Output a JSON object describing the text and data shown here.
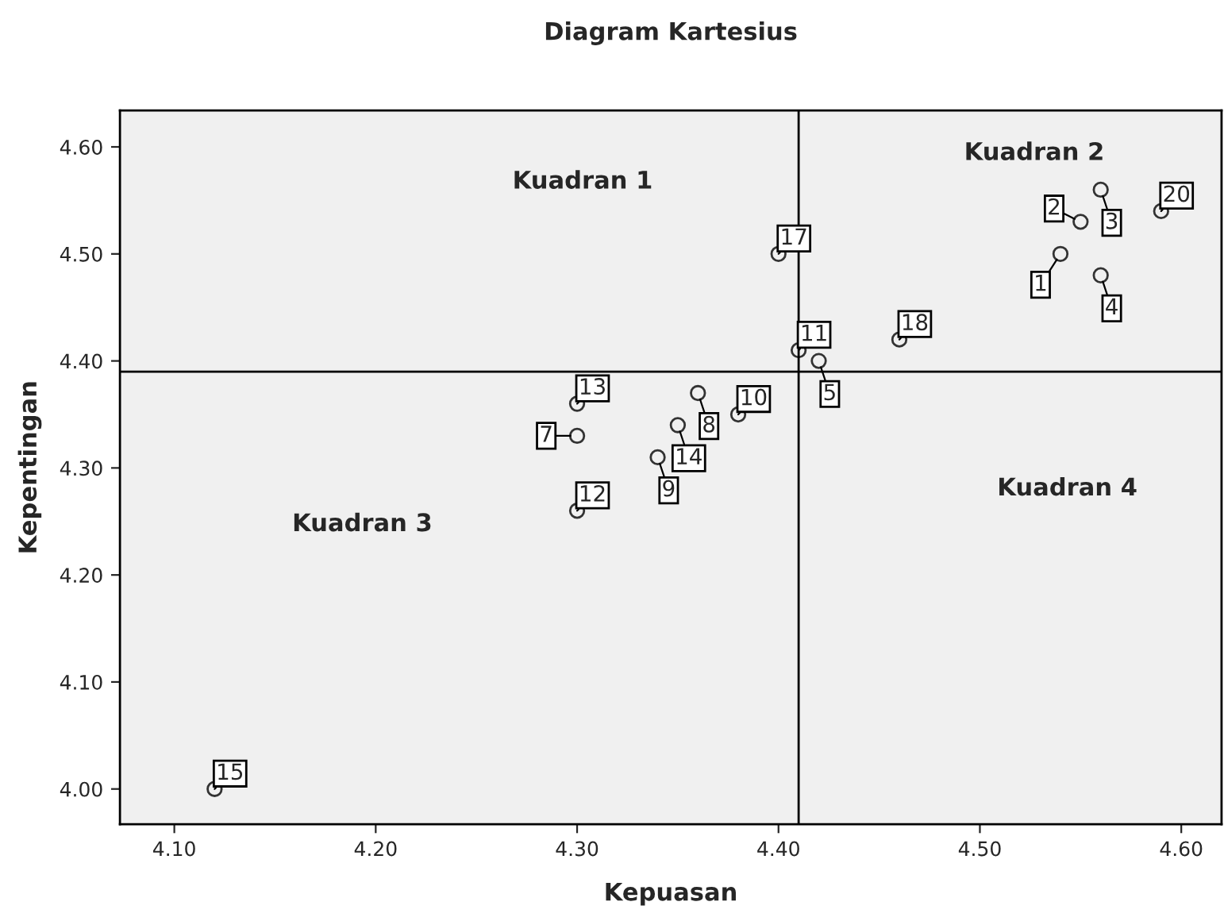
{
  "chart_data": {
    "type": "scatter",
    "title": "Diagram Kartesius",
    "xlabel": "Kepuasan",
    "ylabel": "Kepentingan",
    "x": [
      4.54,
      4.55,
      4.56,
      4.56,
      4.42,
      4.3,
      4.36,
      4.34,
      4.38,
      4.41,
      4.3,
      4.3,
      4.35,
      4.12,
      4.4,
      4.46,
      4.59
    ],
    "series": [
      {
        "color": "#333333",
        "values": [
          4.5,
          4.53,
          4.56,
          4.48,
          4.4,
          4.33,
          4.37,
          4.31,
          4.35,
          4.41,
          4.26,
          4.36,
          4.34,
          4.0,
          4.5,
          4.42,
          4.54
        ]
      }
    ],
    "marker": "circle",
    "grid": false,
    "xlim": [
      4.073,
      4.62
    ],
    "ylim": [
      3.967,
      4.634
    ],
    "xticks": [
      {
        "value": 4.1,
        "label": "4.10"
      },
      {
        "value": 4.2,
        "label": "4.20"
      },
      {
        "value": 4.3,
        "label": "4.30"
      },
      {
        "value": 4.4,
        "label": "4.40"
      },
      {
        "value": 4.5,
        "label": "4.50"
      },
      {
        "value": 4.6,
        "label": "4.60"
      }
    ],
    "yticks": [
      {
        "value": 4.0,
        "label": "4.00"
      },
      {
        "value": 4.1,
        "label": "4.10"
      },
      {
        "value": 4.2,
        "label": "4.20"
      },
      {
        "value": 4.3,
        "label": "4.30"
      },
      {
        "value": 4.4,
        "label": "4.40"
      },
      {
        "value": 4.5,
        "label": "4.50"
      },
      {
        "value": 4.6,
        "label": "4.60"
      }
    ],
    "ref_lines": [
      {
        "axis": "x",
        "value": 4.41,
        "color": "#000000"
      },
      {
        "axis": "y",
        "value": 4.39,
        "color": "#000000"
      }
    ],
    "annotations": [
      "Kuadran 1",
      "Kuadran 2",
      "Kuadran 3",
      "Kuadran 4",
      {
        "text": "1",
        "x": 4.54,
        "y": 4.5
      },
      {
        "text": "2",
        "x": 4.55,
        "y": 4.53
      },
      {
        "text": "3",
        "x": 4.56,
        "y": 4.56
      },
      {
        "text": "4",
        "x": 4.56,
        "y": 4.48
      },
      {
        "text": "5",
        "x": 4.42,
        "y": 4.4
      },
      {
        "text": "7",
        "x": 4.3,
        "y": 4.33
      },
      {
        "text": "8",
        "x": 4.36,
        "y": 4.37
      },
      {
        "text": "9",
        "x": 4.34,
        "y": 4.31
      },
      {
        "text": "10",
        "x": 4.38,
        "y": 4.35
      },
      {
        "text": "11",
        "x": 4.41,
        "y": 4.41
      },
      {
        "text": "12",
        "x": 4.3,
        "y": 4.26
      },
      {
        "text": "13",
        "x": 4.3,
        "y": 4.36
      },
      {
        "text": "14",
        "x": 4.35,
        "y": 4.34
      },
      {
        "text": "15",
        "x": 4.12,
        "y": 4.0
      },
      {
        "text": "17",
        "x": 4.4,
        "y": 4.5
      },
      {
        "text": "18",
        "x": 4.46,
        "y": 4.42
      },
      {
        "text": "20",
        "x": 4.59,
        "y": 4.54
      }
    ]
  }
}
